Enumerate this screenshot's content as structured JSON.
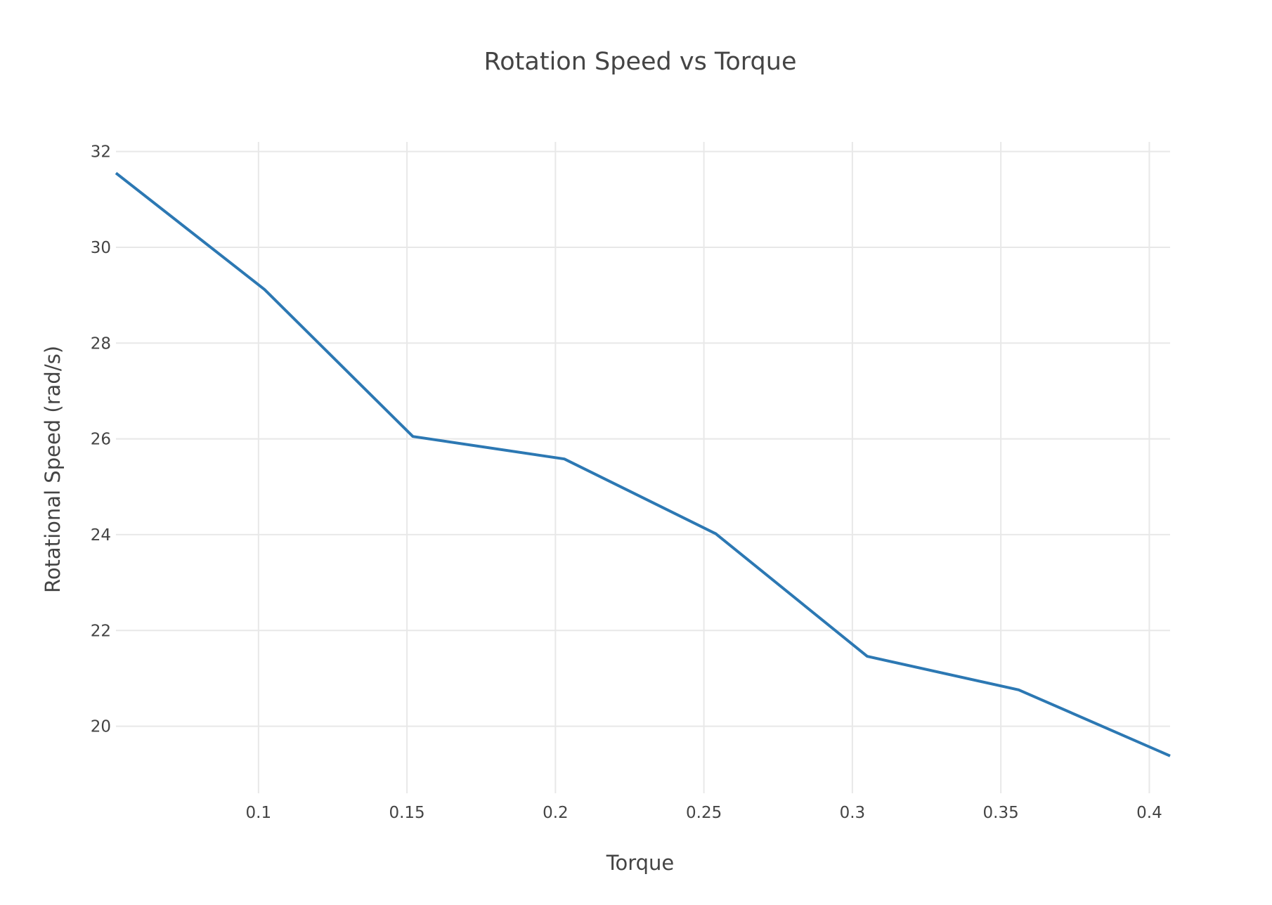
{
  "chart_data": {
    "type": "line",
    "title": "Rotation Speed vs Torque",
    "xlabel": "Torque",
    "ylabel": "Rotational Speed (rad/s)",
    "xlim": [
      0.052,
      0.407
    ],
    "ylim": [
      18.6,
      32.2
    ],
    "x_ticks": [
      0.1,
      0.15,
      0.2,
      0.25,
      0.3,
      0.35,
      0.4
    ],
    "x_tick_labels": [
      "0.1",
      "0.15",
      "0.2",
      "0.25",
      "0.3",
      "0.35",
      "0.4"
    ],
    "y_ticks": [
      20,
      22,
      24,
      26,
      28,
      30,
      32
    ],
    "y_tick_labels": [
      "20",
      "22",
      "24",
      "26",
      "28",
      "30",
      "32"
    ],
    "grid": true,
    "line_color": "#2c78b3",
    "series": [
      {
        "x": [
          0.052,
          0.102,
          0.152,
          0.203,
          0.254,
          0.305,
          0.356,
          0.407
        ],
        "y": [
          31.55,
          29.12,
          26.05,
          25.58,
          24.02,
          21.46,
          20.76,
          19.38
        ]
      }
    ]
  }
}
